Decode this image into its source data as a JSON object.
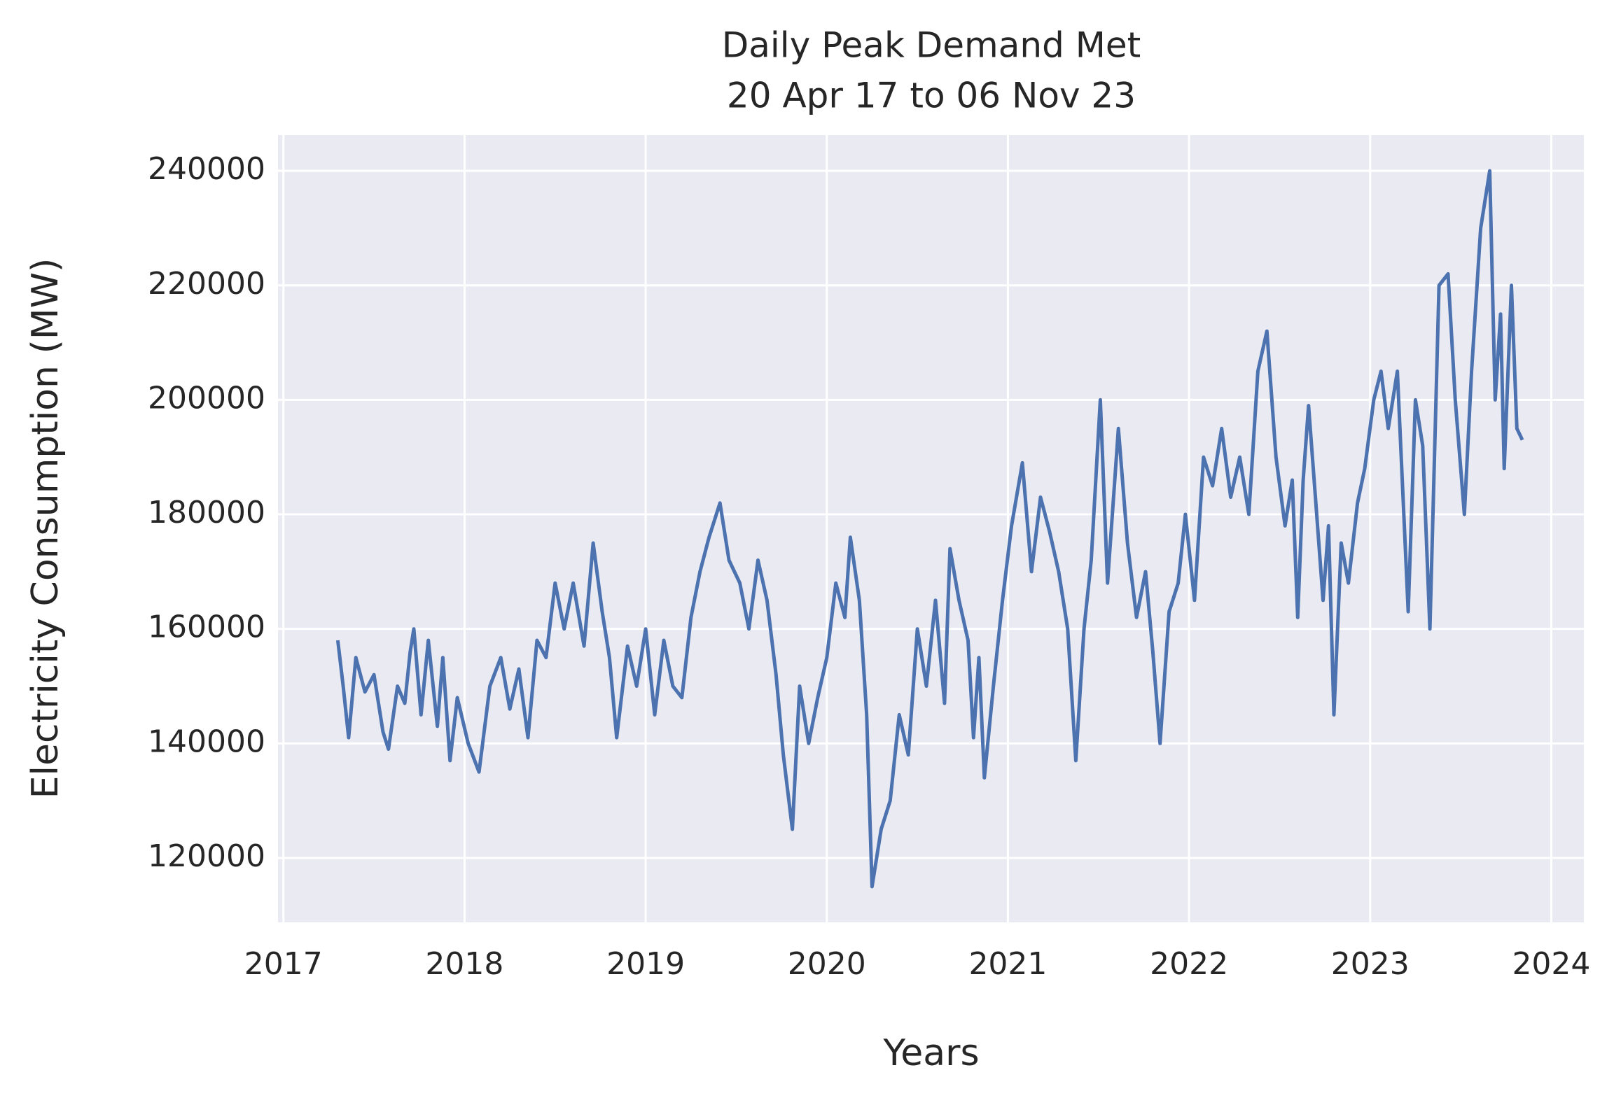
{
  "chart_data": {
    "type": "line",
    "title": "Daily Peak Demand Met",
    "subtitle": "20 Apr 17 to 06 Nov 23",
    "x_label": "Years",
    "y_label": "Electricity Consumption (MW)",
    "x": [
      2017.3,
      2017.33,
      2017.36,
      2017.4,
      2017.45,
      2017.5,
      2017.55,
      2017.58,
      2017.63,
      2017.67,
      2017.7,
      2017.72,
      2017.76,
      2017.8,
      2017.85,
      2017.88,
      2017.92,
      2017.96,
      2018.02,
      2018.08,
      2018.14,
      2018.2,
      2018.25,
      2018.3,
      2018.35,
      2018.4,
      2018.45,
      2018.5,
      2018.55,
      2018.6,
      2018.66,
      2018.71,
      2018.76,
      2018.8,
      2018.84,
      2018.9,
      2018.95,
      2019.0,
      2019.05,
      2019.1,
      2019.15,
      2019.2,
      2019.25,
      2019.3,
      2019.35,
      2019.41,
      2019.46,
      2019.52,
      2019.57,
      2019.62,
      2019.67,
      2019.72,
      2019.76,
      2019.81,
      2019.85,
      2019.9,
      2019.95,
      2020.0,
      2020.05,
      2020.1,
      2020.13,
      2020.18,
      2020.22,
      2020.25,
      2020.3,
      2020.35,
      2020.4,
      2020.45,
      2020.5,
      2020.55,
      2020.6,
      2020.65,
      2020.68,
      2020.73,
      2020.78,
      2020.81,
      2020.84,
      2020.87,
      2020.92,
      2020.97,
      2021.02,
      2021.08,
      2021.13,
      2021.18,
      2021.23,
      2021.28,
      2021.33,
      2021.375,
      2021.42,
      2021.46,
      2021.51,
      2021.55,
      2021.61,
      2021.66,
      2021.71,
      2021.76,
      2021.8,
      2021.84,
      2021.89,
      2021.94,
      2021.98,
      2022.03,
      2022.08,
      2022.13,
      2022.18,
      2022.23,
      2022.28,
      2022.33,
      2022.38,
      2022.43,
      2022.48,
      2022.53,
      2022.57,
      2022.6,
      2022.63,
      2022.66,
      2022.7,
      2022.74,
      2022.77,
      2022.8,
      2022.84,
      2022.88,
      2022.93,
      2022.97,
      2023.02,
      2023.06,
      2023.1,
      2023.15,
      2023.21,
      2023.25,
      2023.29,
      2023.33,
      2023.38,
      2023.43,
      2023.47,
      2023.52,
      2023.56,
      2023.61,
      2023.66,
      2023.69,
      2023.72,
      2023.74,
      2023.78,
      2023.81,
      2023.84
    ],
    "series": [
      {
        "name": "Peak Demand Met",
        "color": "#4c72b0",
        "values": [
          158000,
          150000,
          141000,
          155000,
          149000,
          152000,
          142000,
          139000,
          150000,
          147000,
          156000,
          160000,
          145000,
          158000,
          143000,
          155000,
          137000,
          148000,
          140000,
          135000,
          150000,
          155000,
          146000,
          153000,
          141000,
          158000,
          155000,
          168000,
          160000,
          168000,
          157000,
          175000,
          163000,
          155000,
          141000,
          157000,
          150000,
          160000,
          145000,
          158000,
          150000,
          148000,
          162000,
          170000,
          176000,
          182000,
          172000,
          168000,
          160000,
          172000,
          165000,
          152000,
          138000,
          125000,
          150000,
          140000,
          148000,
          155000,
          168000,
          162000,
          176000,
          165000,
          145000,
          115000,
          125000,
          130000,
          145000,
          138000,
          160000,
          150000,
          165000,
          147000,
          174000,
          165000,
          158000,
          141000,
          155000,
          134000,
          150000,
          165000,
          178000,
          189000,
          170000,
          183000,
          177000,
          170000,
          160000,
          137000,
          160000,
          172000,
          200000,
          168000,
          195000,
          175000,
          162000,
          170000,
          156000,
          140000,
          163000,
          168000,
          180000,
          165000,
          190000,
          185000,
          195000,
          183000,
          190000,
          180000,
          205000,
          212000,
          190000,
          178000,
          186000,
          162000,
          186000,
          199000,
          182000,
          165000,
          178000,
          145000,
          175000,
          168000,
          182000,
          188000,
          200000,
          205000,
          195000,
          205000,
          163000,
          200000,
          192000,
          160000,
          220000,
          222000,
          200000,
          180000,
          205000,
          230000,
          240000,
          200000,
          215000,
          188000,
          220000,
          195000,
          193000
        ]
      }
    ],
    "xlim": [
      2016.97,
      2024.18
    ],
    "ylim": [
      108750,
      246250
    ],
    "xticks": [
      2017,
      2018,
      2019,
      2020,
      2021,
      2022,
      2023,
      2024
    ],
    "yticks": [
      120000,
      140000,
      160000,
      180000,
      200000,
      220000,
      240000
    ],
    "grid": true
  }
}
